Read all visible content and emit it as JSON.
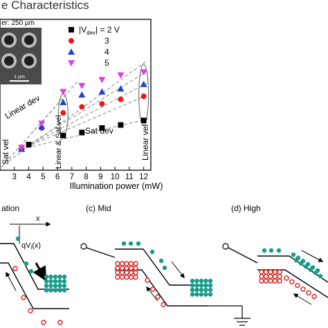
{
  "title": "e Characteristics",
  "inset": {
    "caption": "er: 250 µm",
    "scale_label": "1 µm"
  },
  "chart_data": {
    "type": "scatter",
    "xlabel": "Illumination power (mW)",
    "ylabel": "",
    "xlim": [
      2,
      12.5
    ],
    "ylim": [
      0,
      10
    ],
    "x_ticks": [
      "3",
      "4",
      "5",
      "6",
      "7",
      "8",
      "9",
      "10",
      "11",
      "12"
    ],
    "grid": false,
    "legend_placement": "top-right",
    "series": [
      {
        "name": "|V",
        "sub": "dev",
        "suffix": "| = 2 V",
        "marker": "square",
        "color": "#000000",
        "x": [
          4.0,
          6.4,
          7.7,
          9.1,
          10.4,
          12.0
        ],
        "y": [
          1.7,
          2.3,
          2.5,
          2.8,
          3.0,
          3.3
        ]
      },
      {
        "name": "3",
        "marker": "circle",
        "color": "#e41a1c",
        "x": [
          3.5,
          4.9,
          6.4,
          7.7,
          9.1,
          10.4,
          12.0
        ],
        "y": [
          1.4,
          2.8,
          3.8,
          4.2,
          4.4,
          4.7,
          4.9
        ]
      },
      {
        "name": "4",
        "marker": "triangle",
        "color": "#1f3fd6",
        "x": [
          3.5,
          4.9,
          6.4,
          7.7,
          9.1,
          10.4,
          12.0
        ],
        "y": [
          1.4,
          2.9,
          4.5,
          5.0,
          5.2,
          5.4,
          5.7
        ]
      },
      {
        "name": "5",
        "marker": "triangle-down",
        "color": "#e23be6",
        "x": [
          3.5,
          4.9,
          6.4,
          7.7,
          9.1,
          10.4,
          12.0
        ],
        "y": [
          1.5,
          3.1,
          5.2,
          5.6,
          6.0,
          6.3,
          6.5
        ]
      }
    ],
    "annotations": [
      "Linear dev",
      "Sat dev",
      "Sat vel",
      "Linear & Sat vel",
      "Linear vel"
    ]
  },
  "diagrams": {
    "panel_b_label": "ation",
    "panel_c_label": "(c) Mid",
    "panel_d_label": "(d) High",
    "x_label": "x",
    "q_label": "qV",
    "q_sub": "i",
    "q_suffix": "(x)"
  }
}
